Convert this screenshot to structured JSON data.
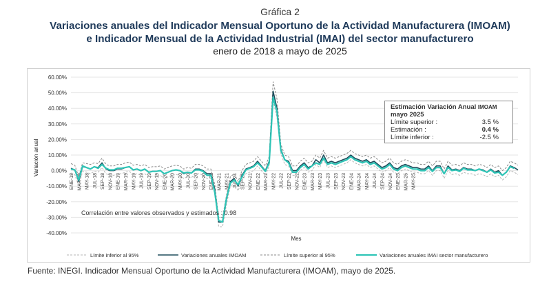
{
  "header": {
    "grafica": "Gráfica 2",
    "title_line1": "Variaciones anuales del Indicador Mensual Oportuno de la Actividad Manufacturera (IMOAM)",
    "title_line2": "e Indicador Mensual de la Actividad Industrial (IMAI) del sector manufacturero",
    "subtitle": "enero de 2018 a mayo de 2025"
  },
  "estimation_box": {
    "heading_main": "Estimación Variación Anual",
    "heading_small": "IMOAM",
    "heading_month": "mayo 2025",
    "rows": [
      {
        "label": "Límite superior :",
        "value": "3.5 %"
      },
      {
        "label": "Estimación :",
        "value": "0.4 %"
      },
      {
        "label": "Límite inferior :",
        "value": "-2.5 %"
      }
    ]
  },
  "correlation_note": "Correlación entre valores observados y estimados :   0.98",
  "source": "Fuente: INEGI. Indicador Mensual Oportuno de la Actividad Manufacturera (IMOAM), mayo de 2025.",
  "colors": {
    "imoam": "#1e4d5c",
    "imai": "#2ec4b6",
    "limits": "#9a9a9a",
    "grid": "#e6e6e6"
  },
  "chart_data": {
    "type": "line",
    "xlabel": "Mes",
    "ylabel": "Variación anual",
    "ylim": [
      -40,
      60
    ],
    "y_ticks": [
      "60.00%",
      "50.00%",
      "40.00%",
      "30.00%",
      "20.00%",
      "10.00%",
      "0.00%",
      "-10.00%",
      "-20.00%",
      "-30.00%",
      "-40.00%"
    ],
    "y_tick_values": [
      60,
      50,
      40,
      30,
      20,
      10,
      0,
      -10,
      -20,
      -30,
      -40
    ],
    "x_tick_labels": [
      "ENE-18",
      "MAR-18",
      "MAY-18",
      "JUL-18",
      "SEP-18",
      "NOV-18",
      "ENE-19",
      "MAR-19",
      "MAY-19",
      "JUL-19",
      "SEP-19",
      "NOV-19",
      "ENE-20",
      "MAR-20",
      "MAY-20",
      "JUL-20",
      "SEP-20",
      "NOV-20",
      "ENE-21",
      "MAR-21",
      "MAY-21",
      "JUL-21",
      "SEP-21",
      "NOV-21",
      "ENE-22",
      "MAR-22",
      "MAY-22",
      "JUL-22",
      "SEP-22",
      "NOV-22",
      "ENE-23",
      "MAR-23",
      "MAY-23",
      "JUL-23",
      "SEP-23",
      "NOV-23",
      "ENE-24",
      "MAR-24",
      "MAY-24",
      "JUL-24",
      "SEP-24",
      "NOV-24",
      "ENE-25",
      "MAR-25",
      "MAY-25"
    ],
    "legend": [
      {
        "name": "Límite inferior al 95%",
        "series": "lower"
      },
      {
        "name": "Variaciones anuales IMOAM",
        "series": "imoam"
      },
      {
        "name": "Límite superior al 95%",
        "series": "upper"
      },
      {
        "name": "Variaciones anuales IMAI sector manufacturero",
        "series": "imai"
      }
    ],
    "series": [
      {
        "key": "imoam",
        "name": "Variaciones anuales IMOAM",
        "values": [
          1.5,
          0.5,
          -7,
          2.5,
          2,
          1,
          2.5,
          2,
          5,
          1,
          0,
          0,
          1,
          1,
          2,
          2.5,
          0.5,
          1,
          0,
          1,
          -1,
          -0.5,
          -0.5,
          0,
          -2,
          -1,
          0,
          0.5,
          0,
          -2,
          -1,
          -1.5,
          1,
          1,
          0,
          -2,
          -2,
          -12,
          -33,
          -33,
          -19,
          -7,
          -5,
          -10,
          -3,
          1,
          2,
          3,
          6,
          3,
          0,
          6,
          51,
          40,
          14,
          7,
          6,
          0,
          0,
          3,
          5,
          2,
          3,
          7,
          5,
          10,
          5,
          6,
          5,
          6,
          7,
          8,
          10,
          8,
          7,
          6,
          7,
          5,
          6,
          4,
          2,
          3,
          5,
          2,
          1,
          3,
          4,
          3,
          2,
          2,
          1,
          1,
          3,
          0,
          3,
          3,
          -2,
          3,
          0.5,
          1,
          0,
          2,
          1,
          1,
          0,
          1,
          0.5,
          -1,
          1,
          -1,
          0,
          -3,
          -1,
          3,
          2,
          0.4
        ]
      },
      {
        "key": "imai",
        "name": "Variaciones anuales IMAI sector manufacturero",
        "values": [
          1,
          0.5,
          -6,
          3,
          2,
          1,
          2.5,
          1.5,
          4,
          1.5,
          0.5,
          0.5,
          1.5,
          1.5,
          2,
          2.5,
          0.5,
          1,
          0,
          1,
          -1,
          -0.5,
          -0.5,
          0,
          -2,
          -1,
          0,
          0.5,
          0,
          -1.5,
          -1,
          -1.5,
          0.5,
          0.5,
          -0.5,
          -3,
          -3,
          -14,
          -32,
          -33,
          -18,
          -8,
          -6,
          -9,
          -4,
          0.5,
          1.5,
          2.5,
          5,
          2.5,
          -0.5,
          5,
          47,
          38,
          13,
          7,
          5,
          -1,
          -1,
          2,
          4,
          1,
          3,
          5,
          4,
          8,
          4,
          5,
          4,
          5,
          6,
          7,
          9,
          7,
          6,
          5,
          6,
          4,
          5,
          3,
          1,
          2,
          4,
          1,
          0,
          2,
          3,
          2,
          1,
          1,
          0,
          0,
          2,
          -0.5,
          2,
          2,
          -2,
          2,
          0,
          0.5,
          -0.5,
          1.5,
          0.5,
          0.5,
          0,
          1,
          0,
          -1,
          0.5,
          -1.5,
          -1,
          -3,
          -1,
          2.5,
          1.5
        ]
      },
      {
        "key": "upper",
        "name": "Límite superior al 95%",
        "values": [
          4.5,
          3.5,
          -4,
          5,
          4.5,
          4,
          5,
          4.5,
          8,
          4,
          3,
          3,
          4,
          4,
          5,
          5.5,
          3.5,
          4,
          3,
          4,
          2,
          2.5,
          2.5,
          3,
          1,
          2,
          3,
          3.5,
          3,
          1,
          2,
          1.5,
          4,
          4,
          3,
          1,
          1,
          -9,
          -30,
          -30,
          -16,
          -4,
          -2,
          -7,
          0,
          4,
          5,
          6,
          9,
          6,
          3,
          9,
          57,
          46,
          17,
          10,
          9,
          3,
          3,
          6,
          8,
          5,
          6,
          10,
          8,
          13,
          8,
          9,
          8,
          9,
          10,
          11,
          13,
          11,
          10,
          9,
          10,
          8,
          9,
          7,
          5,
          6,
          8,
          5,
          4,
          6,
          7,
          6,
          5,
          5,
          4,
          4,
          6,
          3,
          6,
          6,
          1,
          6,
          3.5,
          4,
          3,
          5,
          4,
          4,
          3,
          4,
          3.5,
          2,
          4,
          2,
          3,
          0,
          2,
          6,
          5,
          3.5
        ]
      },
      {
        "key": "lower",
        "name": "Límite inferior al 95%",
        "values": [
          -1.5,
          -2.5,
          -10,
          -0.5,
          -1,
          -2,
          -0.5,
          -1,
          2,
          -2,
          -3,
          -3,
          -2,
          -2,
          -1,
          -0.5,
          -2.5,
          -2,
          -3,
          -2,
          -4,
          -3.5,
          -3.5,
          -3,
          -5,
          -4,
          -3,
          -2.5,
          -3,
          -5,
          -4,
          -4.5,
          -2,
          -2,
          -3,
          -5,
          -5,
          -15,
          -36,
          -36,
          -22,
          -10,
          -8,
          -13,
          -6,
          -2,
          -1,
          0,
          3,
          0,
          -3,
          3,
          45,
          34,
          11,
          4,
          3,
          -3,
          -3,
          0,
          2,
          -1,
          0,
          4,
          2,
          7,
          2,
          3,
          2,
          3,
          4,
          5,
          7,
          5,
          4,
          3,
          4,
          2,
          3,
          1,
          -1,
          0,
          2,
          -1,
          -2,
          0,
          1,
          0,
          -1,
          -1,
          -2,
          -2,
          0,
          -3,
          0,
          0,
          -5,
          0,
          -2.5,
          -2,
          -3,
          -1,
          -2,
          -2,
          -3,
          -2,
          -2.5,
          -4,
          -2,
          -4,
          -3,
          -6,
          -4,
          0,
          -1,
          -2.5
        ]
      }
    ]
  }
}
